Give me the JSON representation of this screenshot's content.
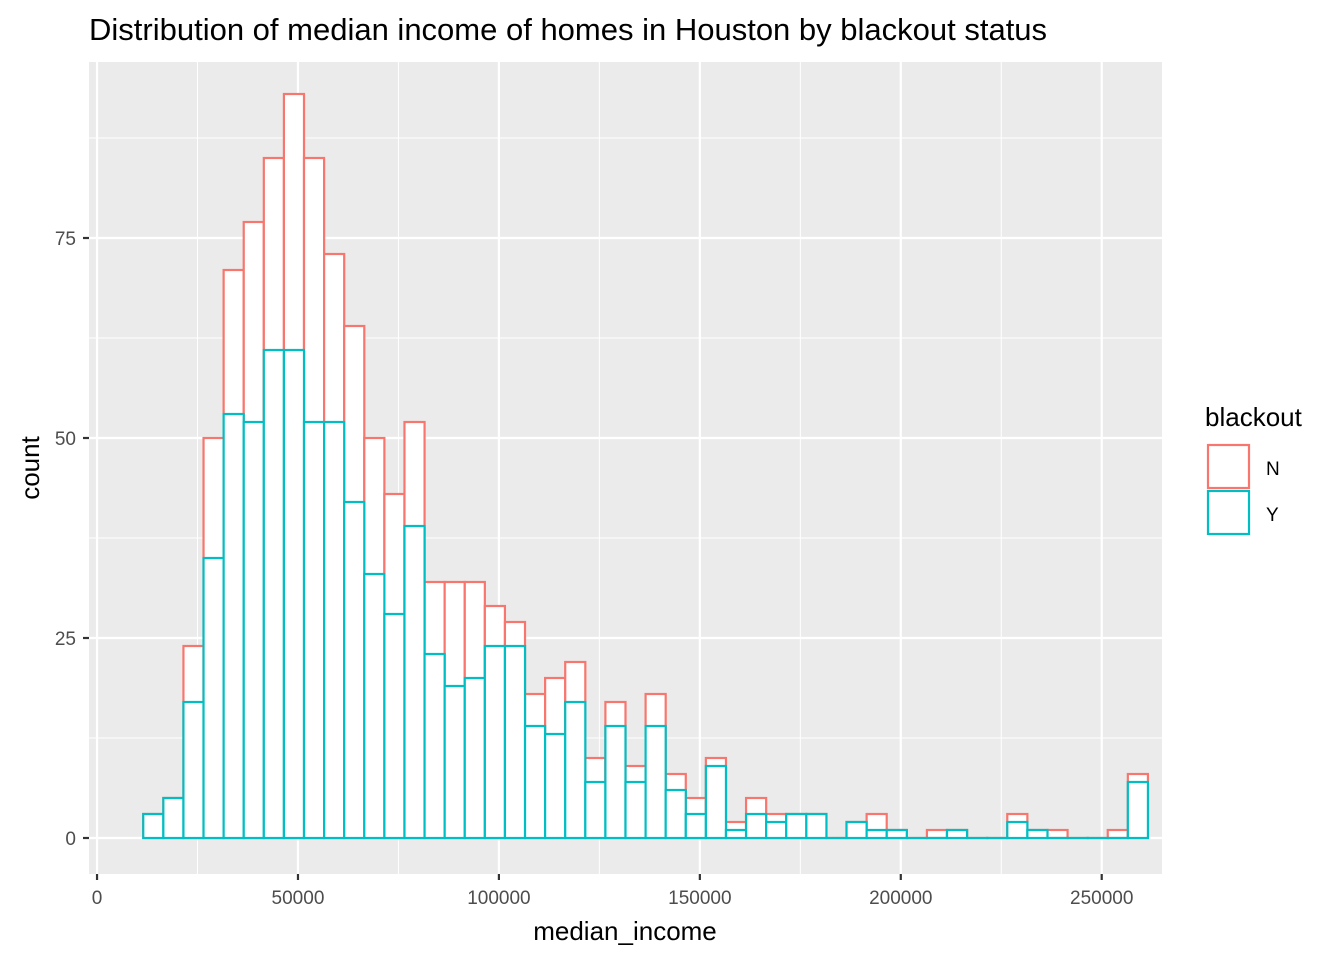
{
  "chart_data": {
    "type": "histogram",
    "title": "Distribution of median income of homes in Houston by blackout status",
    "xlabel": "median_income",
    "ylabel": "count",
    "xlim": [
      -2000,
      265000
    ],
    "ylim": [
      -4.5,
      97
    ],
    "x_ticks": [
      0,
      50000,
      100000,
      150000,
      200000,
      250000
    ],
    "x_tick_labels": [
      "0",
      "50000",
      "100000",
      "150000",
      "200000",
      "250000"
    ],
    "y_ticks": [
      0,
      25,
      50,
      75
    ],
    "y_tick_labels": [
      "0",
      "25",
      "50",
      "75"
    ],
    "grid": true,
    "bin_start": 11500,
    "bin_width": 5000,
    "legend": {
      "title": "blackout",
      "position": "right",
      "entries": [
        {
          "label": "N",
          "color": "#F8766D"
        },
        {
          "label": "Y",
          "color": "#00BFC4"
        }
      ]
    },
    "series": [
      {
        "name": "N",
        "color": "#F8766D",
        "values": [
          3,
          5,
          24,
          50,
          71,
          77,
          85,
          93,
          85,
          73,
          64,
          50,
          43,
          52,
          32,
          32,
          32,
          29,
          27,
          18,
          20,
          22,
          10,
          17,
          9,
          18,
          8,
          5,
          10,
          2,
          5,
          3,
          3,
          3,
          0,
          2,
          3,
          1,
          0,
          1,
          1,
          0,
          0,
          3,
          1,
          1,
          0,
          0,
          1,
          8
        ]
      },
      {
        "name": "Y",
        "color": "#00BFC4",
        "values": [
          3,
          5,
          17,
          35,
          53,
          52,
          61,
          61,
          52,
          52,
          42,
          33,
          28,
          39,
          23,
          19,
          20,
          24,
          24,
          14,
          13,
          17,
          7,
          14,
          7,
          14,
          6,
          3,
          9,
          1,
          3,
          2,
          3,
          3,
          0,
          2,
          1,
          1,
          0,
          0,
          1,
          0,
          0,
          2,
          1,
          0,
          0,
          0,
          0,
          7
        ]
      }
    ]
  },
  "colors": {
    "panel_background": "#EBEBEB",
    "grid": "#FFFFFF",
    "bar_fill": "#FFFFFF"
  }
}
